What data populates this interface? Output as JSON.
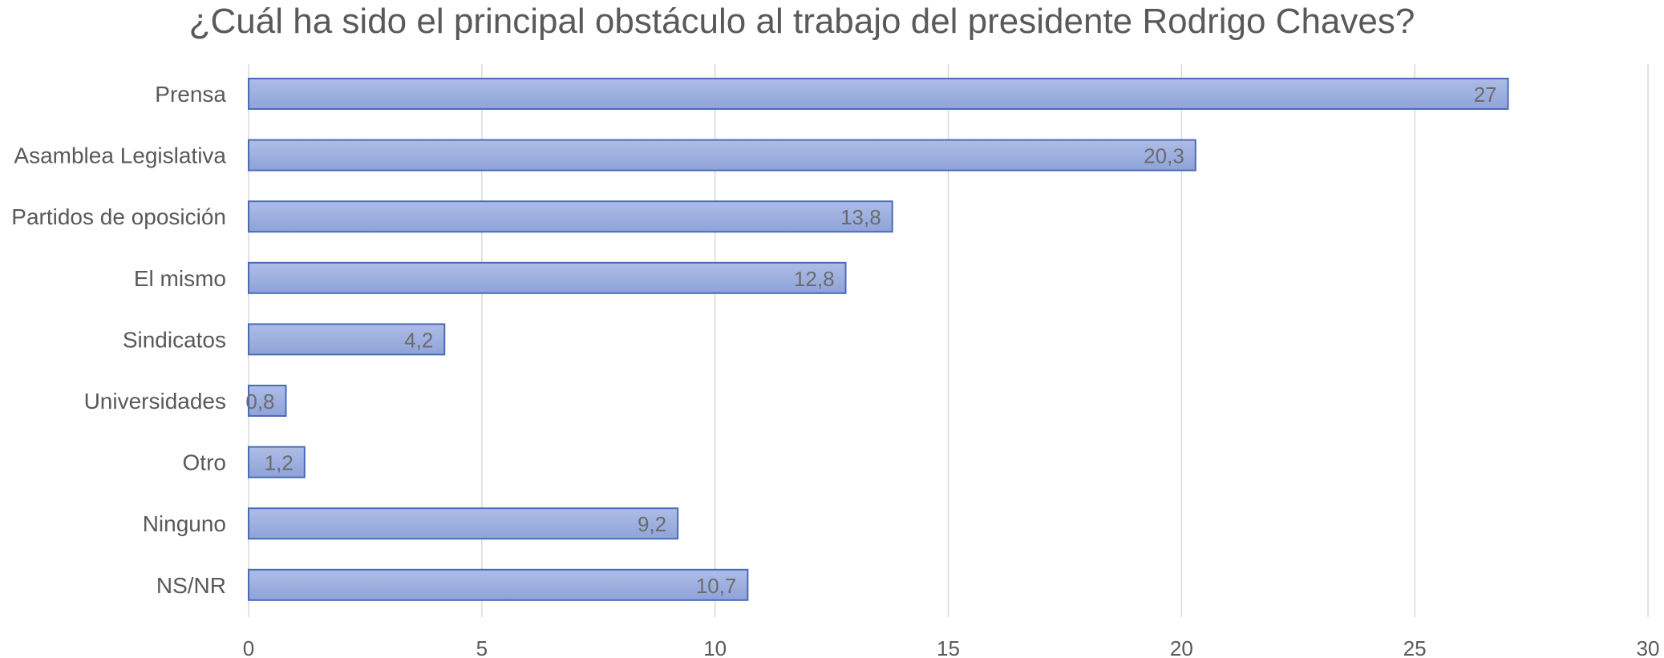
{
  "chart_data": {
    "type": "bar",
    "orientation": "horizontal",
    "title": "¿Cuál ha sido el principal obstáculo al trabajo del presidente Rodrigo Chaves?",
    "categories": [
      "Prensa",
      "Asamblea Legislativa",
      "Partidos de oposición",
      "El mismo",
      "Sindicatos",
      "Universidades",
      "Otro",
      "Ninguno",
      "NS/NR"
    ],
    "values": [
      27,
      20.3,
      13.8,
      12.8,
      4.2,
      0.8,
      1.2,
      9.2,
      10.7
    ],
    "data_labels": [
      "27",
      "20,3",
      "13,8",
      "12,8",
      "4,2",
      "0,8",
      "1,2",
      "9,2",
      "10,7"
    ],
    "xlim": [
      0,
      30
    ],
    "x_ticks": [
      "0",
      "5",
      "10",
      "15",
      "20",
      "25",
      "30"
    ],
    "xlabel": "",
    "ylabel": "",
    "grid": "vertical",
    "legend": "none",
    "colors": {
      "bar_fill_top": "#aebde6",
      "bar_fill_bottom": "#8ea3d9",
      "bar_stroke": "#4a6bb8",
      "grid": "#d9d9d9",
      "text": "#595959"
    }
  }
}
